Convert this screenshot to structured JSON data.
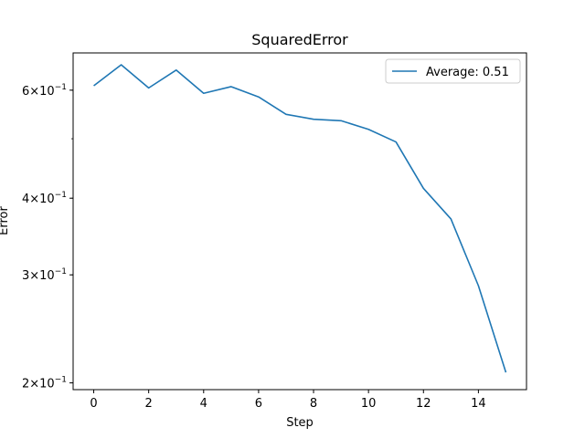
{
  "chart_data": {
    "type": "line",
    "title": "SquaredError",
    "xlabel": "Step",
    "ylabel": "Error",
    "yscale": "log",
    "xlim": [
      -0.75,
      15.75
    ],
    "ylim": [
      0.195,
      0.69
    ],
    "xticks": [
      0,
      2,
      4,
      6,
      8,
      10,
      12,
      14
    ],
    "yticks": [
      {
        "value": 0.6,
        "mantissa": "6",
        "exponent": "−1"
      },
      {
        "value": 0.4,
        "mantissa": "4",
        "exponent": "−1"
      },
      {
        "value": 0.3,
        "mantissa": "3",
        "exponent": "−1"
      },
      {
        "value": 0.2,
        "mantissa": "2",
        "exponent": "−1"
      }
    ],
    "grid": false,
    "legend_position": "upper right",
    "series": [
      {
        "name": "Average: 0.51",
        "color": "#1f77b4",
        "x": [
          0,
          1,
          2,
          3,
          4,
          5,
          6,
          7,
          8,
          9,
          10,
          11,
          12,
          13,
          14,
          15
        ],
        "y": [
          0.61,
          0.66,
          0.605,
          0.647,
          0.593,
          0.608,
          0.585,
          0.548,
          0.538,
          0.535,
          0.518,
          0.494,
          0.415,
          0.37,
          0.288,
          0.208
        ]
      }
    ]
  }
}
